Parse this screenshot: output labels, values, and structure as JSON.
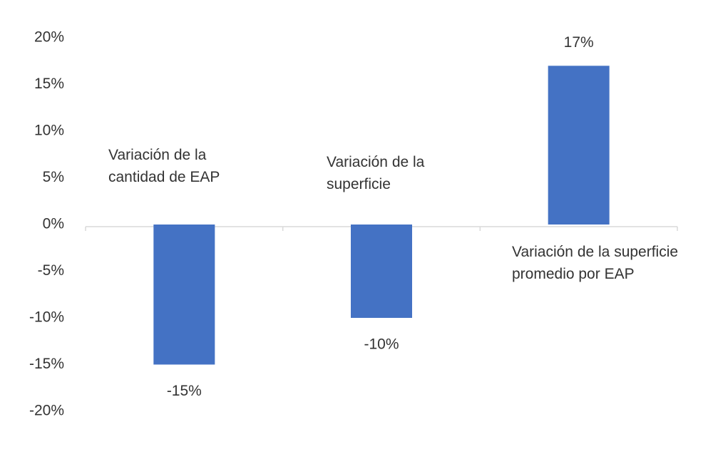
{
  "chart_data": {
    "type": "bar",
    "categories": [
      "Variación de la cantidad de EAP",
      "Variación de la superficie",
      "Variación de la superficie promedio por EAP"
    ],
    "values": [
      -15,
      -10,
      17
    ],
    "value_labels": [
      "-15%",
      "-10%",
      "17%"
    ],
    "color": "#4472c4",
    "ylim": [
      -20,
      20
    ],
    "yticks": [
      {
        "value": 20,
        "label": "20%"
      },
      {
        "value": 15,
        "label": "15%"
      },
      {
        "value": 10,
        "label": "10%"
      },
      {
        "value": 5,
        "label": "5%"
      },
      {
        "value": 0,
        "label": "0%"
      },
      {
        "value": -5,
        "label": "-5%"
      },
      {
        "value": -10,
        "label": "-10%"
      },
      {
        "value": -15,
        "label": "-15%"
      },
      {
        "value": -20,
        "label": "-20%"
      }
    ],
    "grid": false
  }
}
